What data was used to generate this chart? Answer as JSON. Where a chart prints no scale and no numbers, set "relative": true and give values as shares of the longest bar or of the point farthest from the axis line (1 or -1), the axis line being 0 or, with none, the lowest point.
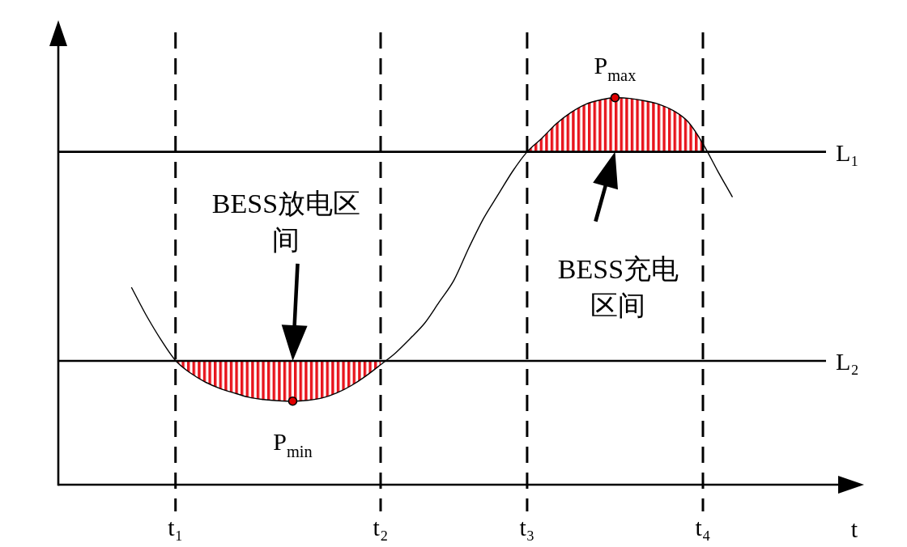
{
  "chart_data": {
    "type": "line",
    "xlabel": "t",
    "relative": true,
    "categories": [
      null,
      null,
      null,
      null,
      null,
      null,
      null,
      "t₁",
      null,
      null,
      null,
      null,
      null,
      null,
      null,
      null,
      null,
      null,
      null,
      null,
      null,
      "t₂",
      null,
      null,
      null,
      null,
      null,
      null,
      null,
      null,
      null,
      "t₃",
      null,
      null,
      null,
      null,
      null,
      null,
      null,
      null,
      null,
      null,
      null,
      "t₄",
      null,
      null,
      null,
      null,
      null,
      null,
      null,
      null,
      null,
      null
    ],
    "series": [
      {
        "color": "#000000",
        "values": [
          null,
          null,
          null,
          null,
          0.509,
          0.438,
          0.375,
          0.321,
          0.289,
          0.266,
          0.249,
          0.237,
          0.226,
          0.22,
          0.217,
          0.216,
          0.218,
          0.224,
          0.237,
          0.256,
          0.281,
          0.31,
          0.34,
          0.377,
          0.417,
          0.472,
          0.528,
          0.61,
          0.686,
          0.748,
          0.809,
          0.86,
          0.895,
          0.933,
          0.962,
          0.983,
          0.994,
          1,
          0.998,
          0.992,
          0.983,
          0.966,
          0.937,
          0.881,
          0.811,
          0.744,
          null,
          null,
          null,
          null,
          null,
          null,
          null,
          null
        ],
        "lower": [
          null,
          null,
          null,
          null,
          null,
          null,
          null,
          0.321,
          0.289,
          0.266,
          0.249,
          0.237,
          0.226,
          0.22,
          0.217,
          0.216,
          0.218,
          0.224,
          0.237,
          0.256,
          0.281,
          0.31,
          null,
          null,
          null,
          null,
          null,
          null,
          null,
          null,
          null,
          0.86,
          0.86,
          0.86,
          0.86,
          0.86,
          0.86,
          0.86,
          0.86,
          0.86,
          0.86,
          0.86,
          0.86,
          0.86,
          null,
          null,
          null,
          null,
          null,
          null,
          null,
          null,
          null,
          null
        ],
        "upper": [
          null,
          null,
          null,
          null,
          null,
          null,
          null,
          0.32,
          0.32,
          0.32,
          0.32,
          0.32,
          0.32,
          0.32,
          0.32,
          0.32,
          0.32,
          0.32,
          0.32,
          0.32,
          0.32,
          0.32,
          null,
          null,
          null,
          null,
          null,
          null,
          null,
          null,
          null,
          0.86,
          0.895,
          0.933,
          0.962,
          0.983,
          0.994,
          1,
          0.998,
          0.992,
          0.983,
          0.966,
          0.937,
          0.881,
          null,
          null,
          null,
          null,
          null,
          null,
          null,
          null,
          null,
          null
        ]
      }
    ],
    "ref_lines": [
      {
        "axis": "y",
        "value": 0.86,
        "label": "L₁",
        "line_style": "solid"
      },
      {
        "axis": "y",
        "value": 0.32,
        "label": "L₂",
        "line_style": "solid"
      },
      {
        "axis": "x",
        "value": "t₁",
        "line_style": "dashed"
      },
      {
        "axis": "x",
        "value": "t₂",
        "line_style": "dashed"
      },
      {
        "axis": "x",
        "value": "t₃",
        "line_style": "dashed"
      },
      {
        "axis": "x",
        "value": "t₄",
        "line_style": "dashed"
      }
    ],
    "annotations": [
      {
        "text": "P$_{max}$",
        "y": 1
      },
      {
        "text": "P$_{min}$",
        "y": 0.216
      },
      "BESS放电区间",
      "BESS充电区间"
    ]
  }
}
